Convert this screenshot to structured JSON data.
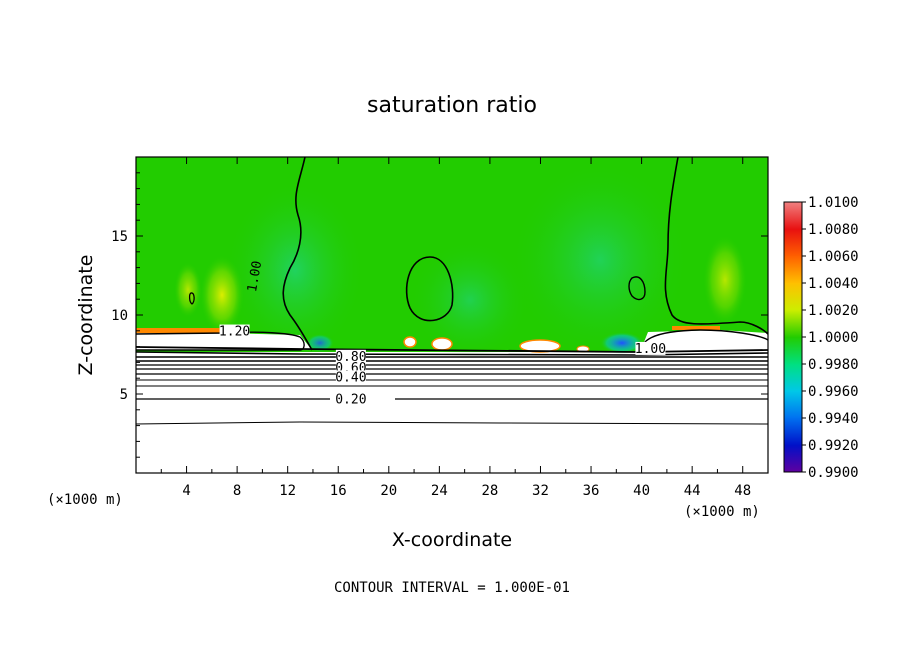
{
  "chart_data": {
    "type": "heatmap",
    "title": "saturation ratio",
    "xlabel": "X-coordinate",
    "ylabel": "Z-coordinate",
    "x_unit_note": "(×1000 m)",
    "x_unit_note_right": "(×1000 m)",
    "xlim": [
      0,
      50
    ],
    "ylim": [
      0,
      20
    ],
    "x_ticks": [
      "4",
      "8",
      "12",
      "16",
      "20",
      "24",
      "28",
      "32",
      "36",
      "40",
      "44",
      "48"
    ],
    "y_ticks": [
      "5",
      "10",
      "15"
    ],
    "footer": "CONTOUR INTERVAL = 1.000E-01",
    "colorbar": {
      "levels": [
        "1.0100",
        "1.0080",
        "1.0060",
        "1.0040",
        "1.0020",
        "1.0000",
        "0.9980",
        "0.9960",
        "0.9940",
        "0.9920",
        "0.9900"
      ],
      "colors": [
        "#f08080",
        "#e81010",
        "#ff6000",
        "#ffc000",
        "#ccee00",
        "#22cc00",
        "#00e080",
        "#00c8e8",
        "#0070f0",
        "#0010c8",
        "#6000a0"
      ]
    },
    "contour_labels": [
      {
        "text": "1.00",
        "x": 9.7,
        "z": 12.4
      },
      {
        "text": "1.20",
        "x": 7.8,
        "z": 8.7
      },
      {
        "text": "1.00",
        "x": 40.7,
        "z": 7.6
      },
      {
        "text": "0.80",
        "x": 17.0,
        "z": 7.1
      },
      {
        "text": "0.60",
        "x": 17.0,
        "z": 6.4
      },
      {
        "text": "0.40",
        "x": 17.0,
        "z": 5.8
      },
      {
        "text": "0.20",
        "x": 17.0,
        "z": 4.4
      }
    ]
  }
}
